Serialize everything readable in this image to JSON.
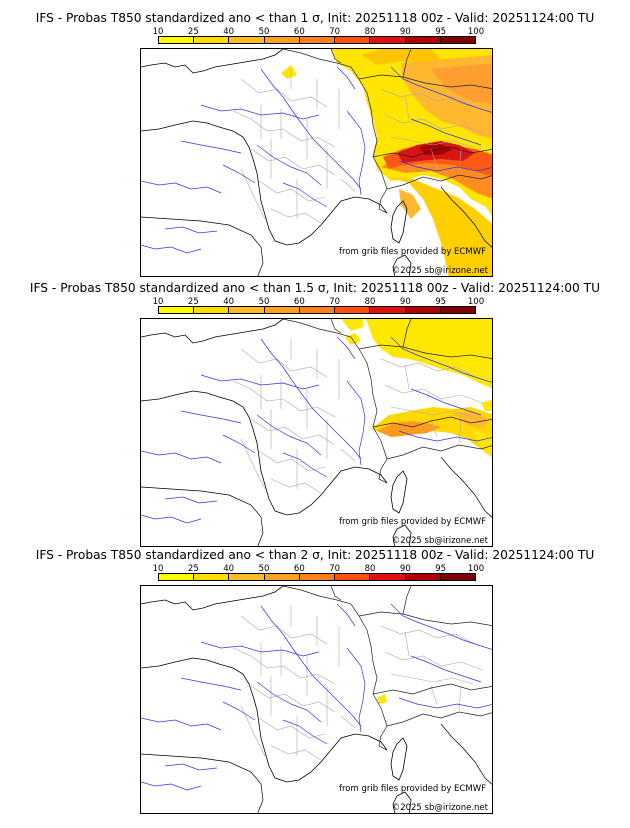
{
  "panels": [
    {
      "title": "IFS - Probas T850  standardized ano < than 1 σ, Init: 20251118 00z - Valid: 20251124:00 TU",
      "credit_source": "from grib files provided by ECMWF",
      "credit_copyright": "©2025 sb@irizone.net",
      "shading_level": "high"
    },
    {
      "title": "IFS - Probas T850  standardized ano < than 1.5 σ, Init: 20251118 00z - Valid: 20251124:00 TU",
      "credit_source": "from grib files provided by ECMWF",
      "credit_copyright": "©2025 sb@irizone.net",
      "shading_level": "medium"
    },
    {
      "title": "IFS - Probas T850  standardized ano < than 2 σ, Init: 20251118 00z - Valid: 20251124:00 TU",
      "credit_source": "from grib files provided by ECMWF",
      "credit_copyright": "©2025 sb@irizone.net",
      "shading_level": "low"
    }
  ],
  "legend": {
    "labels": [
      "10",
      "25",
      "40",
      "50",
      "60",
      "70",
      "80",
      "90",
      "95",
      "100"
    ],
    "colors": [
      "#ffff00",
      "#ffdd00",
      "#ffbb22",
      "#ffa020",
      "#ff8018",
      "#ff5010",
      "#e01010",
      "#b00000",
      "#800000"
    ]
  },
  "colors": {
    "land_border": "#000000",
    "river": "#3333ee",
    "admin": "#aaaaaa"
  }
}
